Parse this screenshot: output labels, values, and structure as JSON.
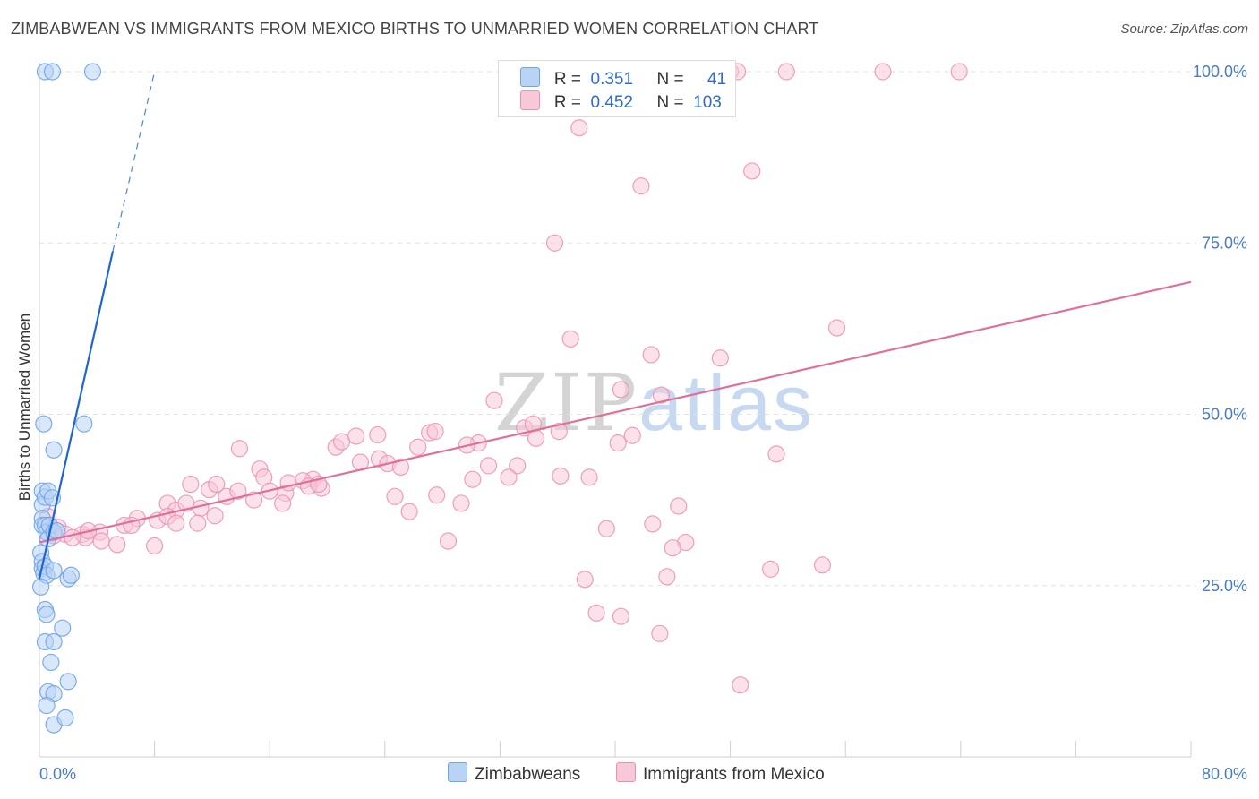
{
  "title": "ZIMBABWEAN VS IMMIGRANTS FROM MEXICO BIRTHS TO UNMARRIED WOMEN CORRELATION CHART",
  "source": "Source: ZipAtlas.com",
  "watermark": {
    "zip": "ZIP",
    "atlas": "atlas"
  },
  "colors": {
    "blue": "#6fa4e6",
    "blue_fill": "#b9d3f5",
    "blue_line": "#1f66cc",
    "pink": "#ec8fb0",
    "pink_fill": "#f7c8d8",
    "pink_line": "#e0709a",
    "tick_text": "#4a7cc4",
    "grid": "#e2e2e2"
  },
  "legend": {
    "rows": [
      {
        "r_label": "R =",
        "r_value": "0.351",
        "n_label": "N =",
        "n_value": "41"
      },
      {
        "r_label": "R =",
        "r_value": "0.452",
        "n_label": "N =",
        "n_value": "103"
      }
    ]
  },
  "bottom_legend": [
    "Zimbabweans",
    "Immigrants from Mexico"
  ],
  "chart_data": {
    "type": "scatter",
    "title": "ZIMBABWEAN VS IMMIGRANTS FROM MEXICO BIRTHS TO UNMARRIED WOMEN CORRELATION CHART",
    "xlabel": "",
    "ylabel": "Births to Unmarried Women",
    "xlim": [
      0,
      80
    ],
    "ylim": [
      0,
      100
    ],
    "x_tick_labels": [
      "0.0%",
      "80.0%"
    ],
    "y_tick_labels": [
      "100.0%",
      "75.0%",
      "50.0%",
      "25.0%"
    ],
    "y_ticks": [
      100,
      75,
      50,
      25
    ],
    "grid": true,
    "legend_placement": "top-center",
    "series": [
      {
        "name": "Zimbabweans",
        "r": 0.351,
        "n": 41,
        "trend": {
          "x": [
            0,
            5.1
          ],
          "y": [
            26.0,
            73.8
          ],
          "extend_to": [
            8.0,
            100.0
          ]
        },
        "points": [
          [
            0.4,
            100
          ],
          [
            0.9,
            100
          ],
          [
            3.7,
            100
          ],
          [
            0.3,
            48.6
          ],
          [
            1.0,
            44.8
          ],
          [
            3.1,
            48.6
          ],
          [
            0.2,
            38.8
          ],
          [
            0.2,
            36.8
          ],
          [
            0.4,
            37.9
          ],
          [
            0.6,
            38.8
          ],
          [
            0.9,
            37.8
          ],
          [
            0.2,
            34.8
          ],
          [
            0.2,
            33.8
          ],
          [
            0.4,
            33.8
          ],
          [
            0.5,
            32.8
          ],
          [
            0.6,
            31.8
          ],
          [
            0.7,
            33.8
          ],
          [
            1.0,
            32.8
          ],
          [
            1.2,
            33.0
          ],
          [
            0.1,
            29.8
          ],
          [
            0.2,
            28.5
          ],
          [
            0.2,
            27.5
          ],
          [
            0.3,
            26.8
          ],
          [
            0.4,
            27.8
          ],
          [
            0.5,
            26.5
          ],
          [
            1.0,
            27.2
          ],
          [
            2.0,
            26.0
          ],
          [
            2.2,
            26.5
          ],
          [
            0.1,
            24.8
          ],
          [
            0.4,
            21.5
          ],
          [
            0.5,
            20.8
          ],
          [
            0.4,
            16.8
          ],
          [
            1.0,
            16.8
          ],
          [
            1.6,
            18.8
          ],
          [
            0.8,
            13.8
          ],
          [
            2.0,
            11.0
          ],
          [
            0.6,
            9.5
          ],
          [
            1.0,
            9.2
          ],
          [
            0.5,
            7.5
          ],
          [
            1.0,
            4.7
          ],
          [
            1.8,
            5.7
          ]
        ]
      },
      {
        "name": "Immigrants from Mexico",
        "r": 0.452,
        "n": 103,
        "trend": {
          "x": [
            0,
            80
          ],
          "y": [
            31.3,
            69.3
          ]
        },
        "points": [
          [
            48.0,
            100
          ],
          [
            48.5,
            100
          ],
          [
            51.9,
            100
          ],
          [
            58.6,
            100
          ],
          [
            63.9,
            100
          ],
          [
            37.5,
            91.8
          ],
          [
            49.5,
            85.5
          ],
          [
            41.8,
            83.3
          ],
          [
            35.8,
            75.0
          ],
          [
            36.9,
            61.0
          ],
          [
            55.4,
            62.6
          ],
          [
            42.5,
            58.7
          ],
          [
            47.3,
            58.2
          ],
          [
            40.4,
            53.6
          ],
          [
            43.2,
            52.8
          ],
          [
            31.6,
            52.0
          ],
          [
            33.7,
            48.0
          ],
          [
            34.3,
            48.6
          ],
          [
            36.1,
            47.5
          ],
          [
            34.5,
            46.5
          ],
          [
            41.2,
            46.9
          ],
          [
            40.2,
            45.8
          ],
          [
            51.2,
            44.2
          ],
          [
            13.9,
            45.0
          ],
          [
            20.6,
            45.2
          ],
          [
            21.0,
            46.0
          ],
          [
            22.0,
            46.8
          ],
          [
            23.5,
            47.0
          ],
          [
            27.1,
            47.3
          ],
          [
            27.5,
            47.5
          ],
          [
            30.5,
            45.8
          ],
          [
            29.7,
            45.5
          ],
          [
            26.3,
            45.2
          ],
          [
            22.3,
            43.0
          ],
          [
            23.6,
            43.5
          ],
          [
            24.2,
            42.8
          ],
          [
            25.1,
            42.3
          ],
          [
            31.2,
            42.5
          ],
          [
            33.2,
            42.5
          ],
          [
            30.1,
            40.5
          ],
          [
            32.6,
            40.8
          ],
          [
            38.2,
            40.8
          ],
          [
            36.2,
            41.0
          ],
          [
            15.3,
            42.0
          ],
          [
            15.6,
            40.8
          ],
          [
            16.0,
            38.8
          ],
          [
            17.1,
            38.5
          ],
          [
            19.0,
            40.5
          ],
          [
            19.6,
            39.2
          ],
          [
            18.3,
            40.3
          ],
          [
            18.7,
            39.5
          ],
          [
            19.4,
            39.8
          ],
          [
            10.5,
            39.8
          ],
          [
            11.8,
            39.0
          ],
          [
            12.3,
            39.8
          ],
          [
            13.0,
            38.0
          ],
          [
            13.8,
            38.8
          ],
          [
            14.9,
            37.5
          ],
          [
            16.9,
            37.0
          ],
          [
            17.3,
            40.0
          ],
          [
            8.9,
            37.0
          ],
          [
            9.5,
            36.0
          ],
          [
            10.2,
            37.0
          ],
          [
            11.2,
            36.3
          ],
          [
            12.2,
            35.2
          ],
          [
            24.7,
            38.0
          ],
          [
            27.6,
            38.2
          ],
          [
            29.3,
            37.0
          ],
          [
            25.7,
            35.8
          ],
          [
            6.8,
            34.8
          ],
          [
            5.9,
            33.8
          ],
          [
            8.2,
            34.5
          ],
          [
            8.9,
            35.1
          ],
          [
            9.5,
            34.1
          ],
          [
            11.0,
            34.1
          ],
          [
            6.4,
            33.8
          ],
          [
            0.6,
            35.1
          ],
          [
            1.3,
            33.5
          ],
          [
            1.8,
            32.5
          ],
          [
            3.0,
            32.5
          ],
          [
            3.2,
            32.0
          ],
          [
            4.2,
            32.8
          ],
          [
            2.3,
            32.0
          ],
          [
            3.4,
            33.0
          ],
          [
            4.3,
            31.5
          ],
          [
            5.4,
            31.0
          ],
          [
            8.0,
            30.8
          ],
          [
            0.7,
            32.5
          ],
          [
            1.0,
            32.3
          ],
          [
            28.4,
            31.5
          ],
          [
            39.4,
            33.3
          ],
          [
            42.6,
            34.0
          ],
          [
            44.4,
            36.6
          ],
          [
            44.9,
            31.3
          ],
          [
            44.0,
            30.5
          ],
          [
            37.9,
            25.9
          ],
          [
            43.6,
            26.3
          ],
          [
            50.8,
            27.4
          ],
          [
            54.4,
            28.0
          ],
          [
            38.7,
            21.0
          ],
          [
            40.4,
            20.5
          ],
          [
            43.1,
            18.0
          ],
          [
            48.7,
            10.5
          ]
        ]
      }
    ]
  }
}
